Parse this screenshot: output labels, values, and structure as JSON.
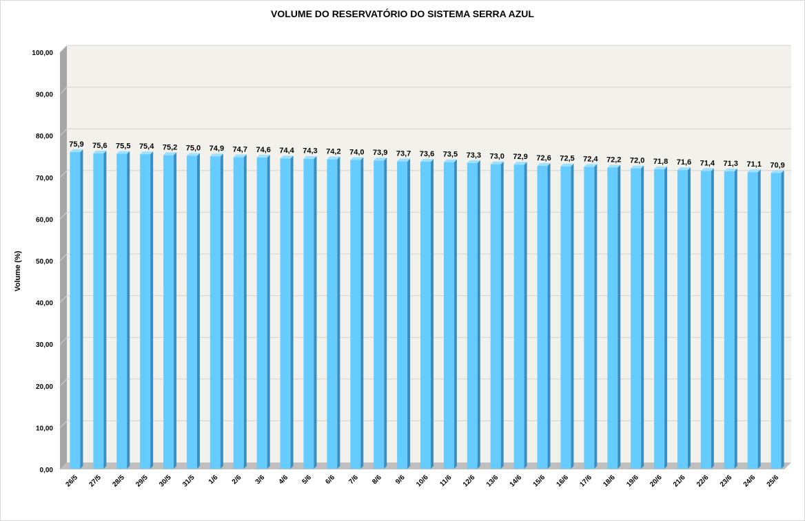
{
  "chart_data": {
    "type": "bar",
    "title": "VOLUME DO RESERVATÓRIO DO SISTEMA SERRA AZUL",
    "xlabel": "",
    "ylabel": "Volume (%)",
    "ylim": [
      0,
      100
    ],
    "yticks": [
      "0,00",
      "10,00",
      "20,00",
      "30,00",
      "40,00",
      "50,00",
      "60,00",
      "70,00",
      "80,00",
      "90,00",
      "100,00"
    ],
    "grid": true,
    "legend": "none",
    "categories": [
      "26/5",
      "27/5",
      "28/5",
      "29/5",
      "30/5",
      "31/5",
      "1/6",
      "2/6",
      "3/6",
      "4/6",
      "5/6",
      "6/6",
      "7/6",
      "8/6",
      "9/6",
      "10/6",
      "11/6",
      "12/6",
      "13/6",
      "14/6",
      "15/6",
      "16/6",
      "17/6",
      "18/6",
      "19/6",
      "20/6",
      "21/6",
      "22/6",
      "23/6",
      "24/6",
      "25/6"
    ],
    "values": [
      75.9,
      75.6,
      75.5,
      75.4,
      75.2,
      75.0,
      74.9,
      74.7,
      74.6,
      74.4,
      74.3,
      74.2,
      74.0,
      73.9,
      73.7,
      73.6,
      73.5,
      73.3,
      73.0,
      72.9,
      72.6,
      72.5,
      72.4,
      72.2,
      72.0,
      71.8,
      71.6,
      71.4,
      71.3,
      71.1,
      70.9
    ],
    "value_labels": [
      "75,9",
      "75,6",
      "75,5",
      "75,4",
      "75,2",
      "75,0",
      "74,9",
      "74,7",
      "74,6",
      "74,4",
      "74,3",
      "74,2",
      "74,0",
      "73,9",
      "73,7",
      "73,6",
      "73,5",
      "73,3",
      "73,0",
      "72,9",
      "72,6",
      "72,5",
      "72,4",
      "72,2",
      "72,0",
      "71,8",
      "71,6",
      "71,4",
      "71,3",
      "71,1",
      "70,9"
    ],
    "colors": {
      "bar_front": "#66ccff",
      "bar_side": "#3a8fc0",
      "bar_top": "#9ee0ff",
      "plot_back": "#f3f1ec",
      "side_wall": "#a6a6a6",
      "floor": "#bfbfbf",
      "grid": "#d2d2d2"
    }
  }
}
